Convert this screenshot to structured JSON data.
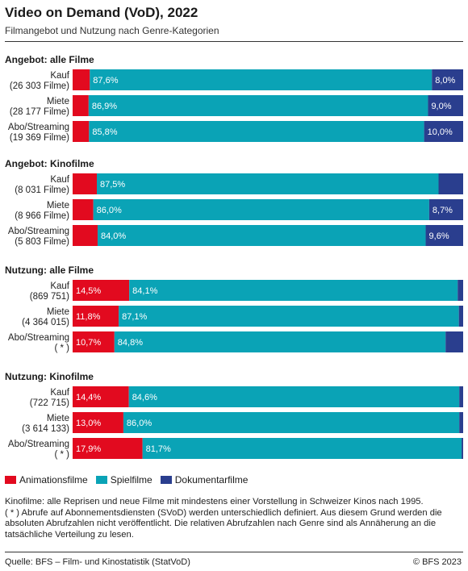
{
  "title": "Video on Demand (VoD), 2022",
  "subtitle": "Filmangebot und Nutzung nach Genre-Kategorien",
  "colors": {
    "animation": "#e20a1f",
    "spiel": "#0aa3b6",
    "doku": "#2a3e8e"
  },
  "chart_data": {
    "type": "bar",
    "stacked": "100%",
    "orientation": "horizontal",
    "series_names": [
      "Animationsfilme",
      "Spielfilme",
      "Dokumentarfilme"
    ],
    "groups": [
      {
        "label": "Angebot: alle Filme",
        "rows": [
          {
            "label1": "Kauf",
            "label2": "(26 303 Filme)",
            "values": [
              4.4,
              87.6,
              8.0
            ],
            "labels": [
              "",
              "87,6%",
              "8,0%"
            ]
          },
          {
            "label1": "Miete",
            "label2": "(28 177 Filme)",
            "values": [
              4.1,
              86.9,
              9.0
            ],
            "labels": [
              "",
              "86,9%",
              "9,0%"
            ]
          },
          {
            "label1": "Abo/Streaming",
            "label2": "(19 369 Filme)",
            "values": [
              4.2,
              85.8,
              10.0
            ],
            "labels": [
              "",
              "85,8%",
              "10,0%"
            ]
          }
        ]
      },
      {
        "label": "Angebot: Kinofilme",
        "rows": [
          {
            "label1": "Kauf",
            "label2": "(8 031 Filme)",
            "values": [
              6.2,
              87.5,
              6.3
            ],
            "labels": [
              "",
              "87,5%",
              ""
            ]
          },
          {
            "label1": "Miete",
            "label2": "(8 966 Filme)",
            "values": [
              5.3,
              86.0,
              8.7
            ],
            "labels": [
              "",
              "86,0%",
              "8,7%"
            ]
          },
          {
            "label1": "Abo/Streaming",
            "label2": "(5 803 Filme)",
            "values": [
              6.4,
              84.0,
              9.6
            ],
            "labels": [
              "",
              "84,0%",
              "9,6%"
            ]
          }
        ]
      },
      {
        "label": "Nutzung: alle Filme",
        "rows": [
          {
            "label1": "Kauf",
            "label2": "(869 751)",
            "values": [
              14.5,
              84.1,
              1.4
            ],
            "labels": [
              "14,5%",
              "84,1%",
              ""
            ]
          },
          {
            "label1": "Miete",
            "label2": "(4 364 015)",
            "values": [
              11.8,
              87.1,
              1.1
            ],
            "labels": [
              "11,8%",
              "87,1%",
              ""
            ]
          },
          {
            "label1": "Abo/Streaming",
            "label2": "( * )",
            "values": [
              10.7,
              84.8,
              4.5
            ],
            "labels": [
              "10,7%",
              "84,8%",
              ""
            ]
          }
        ]
      },
      {
        "label": "Nutzung: Kinofilme",
        "rows": [
          {
            "label1": "Kauf",
            "label2": "(722 715)",
            "values": [
              14.4,
              84.6,
              1.0
            ],
            "labels": [
              "14,4%",
              "84,6%",
              ""
            ]
          },
          {
            "label1": "Miete",
            "label2": "(3 614 133)",
            "values": [
              13.0,
              86.0,
              1.0
            ],
            "labels": [
              "13,0%",
              "86,0%",
              ""
            ]
          },
          {
            "label1": "Abo/Streaming",
            "label2": "( * )",
            "values": [
              17.9,
              81.7,
              0.4
            ],
            "labels": [
              "17,9%",
              "81,7%",
              ""
            ]
          }
        ]
      }
    ]
  },
  "legend": {
    "animation": "Animationsfilme",
    "spiel": "Spielfilme",
    "doku": "Dokumentarfilme"
  },
  "notes": {
    "line1": "Kinofilme: alle Reprisen und neue Filme mit mindestens einer Vorstellung in Schweizer Kinos nach 1995.",
    "line2": "( * ) Abrufe auf Abonnementsdiensten (SVoD) werden unterschiedlich definiert. Aus diesem Grund werden die absoluten Abrufzahlen nicht veröffentlicht. Die relativen Abrufzahlen nach Genre sind als Annäherung an die tatsächliche Verteilung zu lesen."
  },
  "source": "Quelle: BFS – Film- und Kinostatistik (StatVoD)",
  "copyright": "© BFS 2023"
}
